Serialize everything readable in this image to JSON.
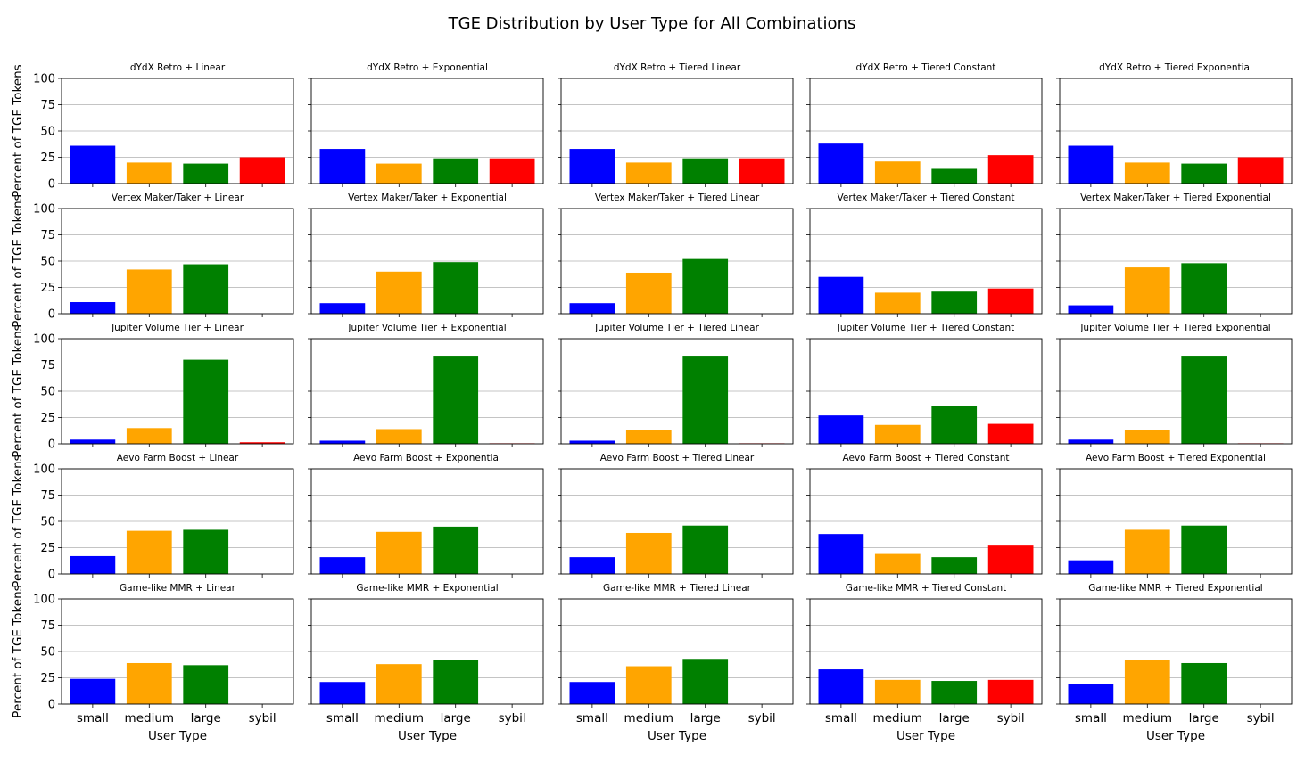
{
  "figure_title": "TGE Distribution by User Type for All Combinations",
  "axis_labels": {
    "ylabel": "Percent of TGE Tokens",
    "xlabel": "User Type"
  },
  "colors": {
    "small": "#0000ff",
    "medium": "#ffa500",
    "large": "#008000",
    "sybil": "#ff0000",
    "grid": "#b0b0b0",
    "axes": "#000000"
  },
  "chart_data": [
    {
      "type": "bar",
      "title": "dYdX Retro + Linear",
      "categories": [
        "small",
        "medium",
        "large",
        "sybil"
      ],
      "values": [
        36,
        20,
        19,
        25
      ],
      "ylim": [
        0,
        100
      ],
      "yticks": [
        0,
        25,
        50,
        75,
        100
      ],
      "ylabel": "Percent of TGE Tokens",
      "xlabel": "User Type",
      "grid": "y"
    },
    {
      "type": "bar",
      "title": "dYdX Retro + Exponential",
      "categories": [
        "small",
        "medium",
        "large",
        "sybil"
      ],
      "values": [
        33,
        19,
        24,
        24
      ],
      "ylim": [
        0,
        100
      ],
      "yticks": [
        0,
        25,
        50,
        75,
        100
      ],
      "ylabel": "Percent of TGE Tokens",
      "xlabel": "User Type",
      "grid": "y"
    },
    {
      "type": "bar",
      "title": "dYdX Retro + Tiered Linear",
      "categories": [
        "small",
        "medium",
        "large",
        "sybil"
      ],
      "values": [
        33,
        20,
        24,
        24
      ],
      "ylim": [
        0,
        100
      ],
      "yticks": [
        0,
        25,
        50,
        75,
        100
      ],
      "ylabel": "Percent of TGE Tokens",
      "xlabel": "User Type",
      "grid": "y"
    },
    {
      "type": "bar",
      "title": "dYdX Retro + Tiered Constant",
      "categories": [
        "small",
        "medium",
        "large",
        "sybil"
      ],
      "values": [
        38,
        21,
        14,
        27
      ],
      "ylim": [
        0,
        100
      ],
      "yticks": [
        0,
        25,
        50,
        75,
        100
      ],
      "ylabel": "Percent of TGE Tokens",
      "xlabel": "User Type",
      "grid": "y"
    },
    {
      "type": "bar",
      "title": "dYdX Retro + Tiered Exponential",
      "categories": [
        "small",
        "medium",
        "large",
        "sybil"
      ],
      "values": [
        36,
        20,
        19,
        25
      ],
      "ylim": [
        0,
        100
      ],
      "yticks": [
        0,
        25,
        50,
        75,
        100
      ],
      "ylabel": "Percent of TGE Tokens",
      "xlabel": "User Type",
      "grid": "y"
    },
    {
      "type": "bar",
      "title": "Vertex Maker/Taker + Linear",
      "categories": [
        "small",
        "medium",
        "large",
        "sybil"
      ],
      "values": [
        11,
        42,
        47,
        0
      ],
      "ylim": [
        0,
        100
      ],
      "yticks": [
        0,
        25,
        50,
        75,
        100
      ],
      "ylabel": "Percent of TGE Tokens",
      "xlabel": "User Type",
      "grid": "y"
    },
    {
      "type": "bar",
      "title": "Vertex Maker/Taker + Exponential",
      "categories": [
        "small",
        "medium",
        "large",
        "sybil"
      ],
      "values": [
        10,
        40,
        49,
        0
      ],
      "ylim": [
        0,
        100
      ],
      "yticks": [
        0,
        25,
        50,
        75,
        100
      ],
      "ylabel": "Percent of TGE Tokens",
      "xlabel": "User Type",
      "grid": "y"
    },
    {
      "type": "bar",
      "title": "Vertex Maker/Taker + Tiered Linear",
      "categories": [
        "small",
        "medium",
        "large",
        "sybil"
      ],
      "values": [
        10,
        39,
        52,
        0
      ],
      "ylim": [
        0,
        100
      ],
      "yticks": [
        0,
        25,
        50,
        75,
        100
      ],
      "ylabel": "Percent of TGE Tokens",
      "xlabel": "User Type",
      "grid": "y"
    },
    {
      "type": "bar",
      "title": "Vertex Maker/Taker + Tiered Constant",
      "categories": [
        "small",
        "medium",
        "large",
        "sybil"
      ],
      "values": [
        35,
        20,
        21,
        24
      ],
      "ylim": [
        0,
        100
      ],
      "yticks": [
        0,
        25,
        50,
        75,
        100
      ],
      "ylabel": "Percent of TGE Tokens",
      "xlabel": "User Type",
      "grid": "y"
    },
    {
      "type": "bar",
      "title": "Vertex Maker/Taker + Tiered Exponential",
      "categories": [
        "small",
        "medium",
        "large",
        "sybil"
      ],
      "values": [
        8,
        44,
        48,
        0
      ],
      "ylim": [
        0,
        100
      ],
      "yticks": [
        0,
        25,
        50,
        75,
        100
      ],
      "ylabel": "Percent of TGE Tokens",
      "xlabel": "User Type",
      "grid": "y"
    },
    {
      "type": "bar",
      "title": "Jupiter Volume Tier + Linear",
      "categories": [
        "small",
        "medium",
        "large",
        "sybil"
      ],
      "values": [
        4,
        15,
        80,
        1.5
      ],
      "ylim": [
        0,
        100
      ],
      "yticks": [
        0,
        25,
        50,
        75,
        100
      ],
      "ylabel": "Percent of TGE Tokens",
      "xlabel": "User Type",
      "grid": "y"
    },
    {
      "type": "bar",
      "title": "Jupiter Volume Tier + Exponential",
      "categories": [
        "small",
        "medium",
        "large",
        "sybil"
      ],
      "values": [
        3,
        14,
        83,
        0.5
      ],
      "ylim": [
        0,
        100
      ],
      "yticks": [
        0,
        25,
        50,
        75,
        100
      ],
      "ylabel": "Percent of TGE Tokens",
      "xlabel": "User Type",
      "grid": "y"
    },
    {
      "type": "bar",
      "title": "Jupiter Volume Tier + Tiered Linear",
      "categories": [
        "small",
        "medium",
        "large",
        "sybil"
      ],
      "values": [
        3,
        13,
        83,
        0.5
      ],
      "ylim": [
        0,
        100
      ],
      "yticks": [
        0,
        25,
        50,
        75,
        100
      ],
      "ylabel": "Percent of TGE Tokens",
      "xlabel": "User Type",
      "grid": "y"
    },
    {
      "type": "bar",
      "title": "Jupiter Volume Tier + Tiered Constant",
      "categories": [
        "small",
        "medium",
        "large",
        "sybil"
      ],
      "values": [
        27,
        18,
        36,
        19
      ],
      "ylim": [
        0,
        100
      ],
      "yticks": [
        0,
        25,
        50,
        75,
        100
      ],
      "ylabel": "Percent of TGE Tokens",
      "xlabel": "User Type",
      "grid": "y"
    },
    {
      "type": "bar",
      "title": "Jupiter Volume Tier + Tiered Exponential",
      "categories": [
        "small",
        "medium",
        "large",
        "sybil"
      ],
      "values": [
        4,
        13,
        83,
        0.5
      ],
      "ylim": [
        0,
        100
      ],
      "yticks": [
        0,
        25,
        50,
        75,
        100
      ],
      "ylabel": "Percent of TGE Tokens",
      "xlabel": "User Type",
      "grid": "y"
    },
    {
      "type": "bar",
      "title": "Aevo Farm Boost + Linear",
      "categories": [
        "small",
        "medium",
        "large",
        "sybil"
      ],
      "values": [
        17,
        41,
        42,
        0
      ],
      "ylim": [
        0,
        100
      ],
      "yticks": [
        0,
        25,
        50,
        75,
        100
      ],
      "ylabel": "Percent of TGE Tokens",
      "xlabel": "User Type",
      "grid": "y"
    },
    {
      "type": "bar",
      "title": "Aevo Farm Boost + Exponential",
      "categories": [
        "small",
        "medium",
        "large",
        "sybil"
      ],
      "values": [
        16,
        40,
        45,
        0
      ],
      "ylim": [
        0,
        100
      ],
      "yticks": [
        0,
        25,
        50,
        75,
        100
      ],
      "ylabel": "Percent of TGE Tokens",
      "xlabel": "User Type",
      "grid": "y"
    },
    {
      "type": "bar",
      "title": "Aevo Farm Boost + Tiered Linear",
      "categories": [
        "small",
        "medium",
        "large",
        "sybil"
      ],
      "values": [
        16,
        39,
        46,
        0
      ],
      "ylim": [
        0,
        100
      ],
      "yticks": [
        0,
        25,
        50,
        75,
        100
      ],
      "ylabel": "Percent of TGE Tokens",
      "xlabel": "User Type",
      "grid": "y"
    },
    {
      "type": "bar",
      "title": "Aevo Farm Boost + Tiered Constant",
      "categories": [
        "small",
        "medium",
        "large",
        "sybil"
      ],
      "values": [
        38,
        19,
        16,
        27
      ],
      "ylim": [
        0,
        100
      ],
      "yticks": [
        0,
        25,
        50,
        75,
        100
      ],
      "ylabel": "Percent of TGE Tokens",
      "xlabel": "User Type",
      "grid": "y"
    },
    {
      "type": "bar",
      "title": "Aevo Farm Boost + Tiered Exponential",
      "categories": [
        "small",
        "medium",
        "large",
        "sybil"
      ],
      "values": [
        13,
        42,
        46,
        0
      ],
      "ylim": [
        0,
        100
      ],
      "yticks": [
        0,
        25,
        50,
        75,
        100
      ],
      "ylabel": "Percent of TGE Tokens",
      "xlabel": "User Type",
      "grid": "y"
    },
    {
      "type": "bar",
      "title": "Game-like MMR + Linear",
      "categories": [
        "small",
        "medium",
        "large",
        "sybil"
      ],
      "values": [
        24,
        39,
        37,
        0
      ],
      "ylim": [
        0,
        100
      ],
      "yticks": [
        0,
        25,
        50,
        75,
        100
      ],
      "ylabel": "Percent of TGE Tokens",
      "xlabel": "User Type",
      "grid": "y"
    },
    {
      "type": "bar",
      "title": "Game-like MMR + Exponential",
      "categories": [
        "small",
        "medium",
        "large",
        "sybil"
      ],
      "values": [
        21,
        38,
        42,
        0
      ],
      "ylim": [
        0,
        100
      ],
      "yticks": [
        0,
        25,
        50,
        75,
        100
      ],
      "ylabel": "Percent of TGE Tokens",
      "xlabel": "User Type",
      "grid": "y"
    },
    {
      "type": "bar",
      "title": "Game-like MMR + Tiered Linear",
      "categories": [
        "small",
        "medium",
        "large",
        "sybil"
      ],
      "values": [
        21,
        36,
        43,
        0
      ],
      "ylim": [
        0,
        100
      ],
      "yticks": [
        0,
        25,
        50,
        75,
        100
      ],
      "ylabel": "Percent of TGE Tokens",
      "xlabel": "User Type",
      "grid": "y"
    },
    {
      "type": "bar",
      "title": "Game-like MMR + Tiered Constant",
      "categories": [
        "small",
        "medium",
        "large",
        "sybil"
      ],
      "values": [
        33,
        23,
        22,
        23
      ],
      "ylim": [
        0,
        100
      ],
      "yticks": [
        0,
        25,
        50,
        75,
        100
      ],
      "ylabel": "Percent of TGE Tokens",
      "xlabel": "User Type",
      "grid": "y"
    },
    {
      "type": "bar",
      "title": "Game-like MMR + Tiered Exponential",
      "categories": [
        "small",
        "medium",
        "large",
        "sybil"
      ],
      "values": [
        19,
        42,
        39,
        0
      ],
      "ylim": [
        0,
        100
      ],
      "yticks": [
        0,
        25,
        50,
        75,
        100
      ],
      "ylabel": "Percent of TGE Tokens",
      "xlabel": "User Type",
      "grid": "y"
    }
  ]
}
